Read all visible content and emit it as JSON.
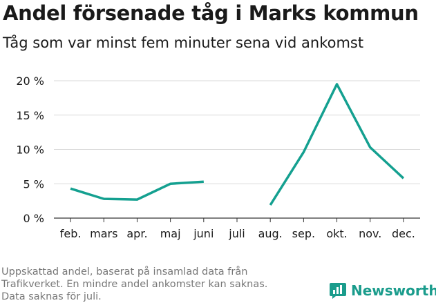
{
  "header": {
    "title": "Andel försenade tåg i Marks kommun",
    "subtitle": "Tåg som var minst fem minuter sena vid ankomst"
  },
  "chart_data": {
    "type": "line",
    "categories": [
      "feb.",
      "mars",
      "apr.",
      "maj",
      "juni",
      "juli",
      "aug.",
      "sep.",
      "okt.",
      "nov.",
      "dec."
    ],
    "series": [
      {
        "values": [
          4.3,
          2.8,
          2.7,
          5.0,
          5.3,
          null,
          1.9,
          9.6,
          19.5,
          10.3,
          5.8
        ]
      }
    ],
    "ylim": [
      0,
      20
    ],
    "yticks": [
      0,
      5,
      10,
      15,
      20
    ],
    "ytick_labels": [
      "0 %",
      "5 %",
      "10 %",
      "15 %",
      "20 %"
    ],
    "grid": true,
    "color": "#14a090"
  },
  "footnote": {
    "lines": [
      "Uppskattad andel, baserat på insamlad data från",
      "Trafikverket. En mindre andel ankomster kan saknas.",
      "Data saknas för juli."
    ]
  },
  "brand": {
    "name": "Newsworthy",
    "icon": "bar-chart-icon",
    "color": "#1a9c8c"
  }
}
